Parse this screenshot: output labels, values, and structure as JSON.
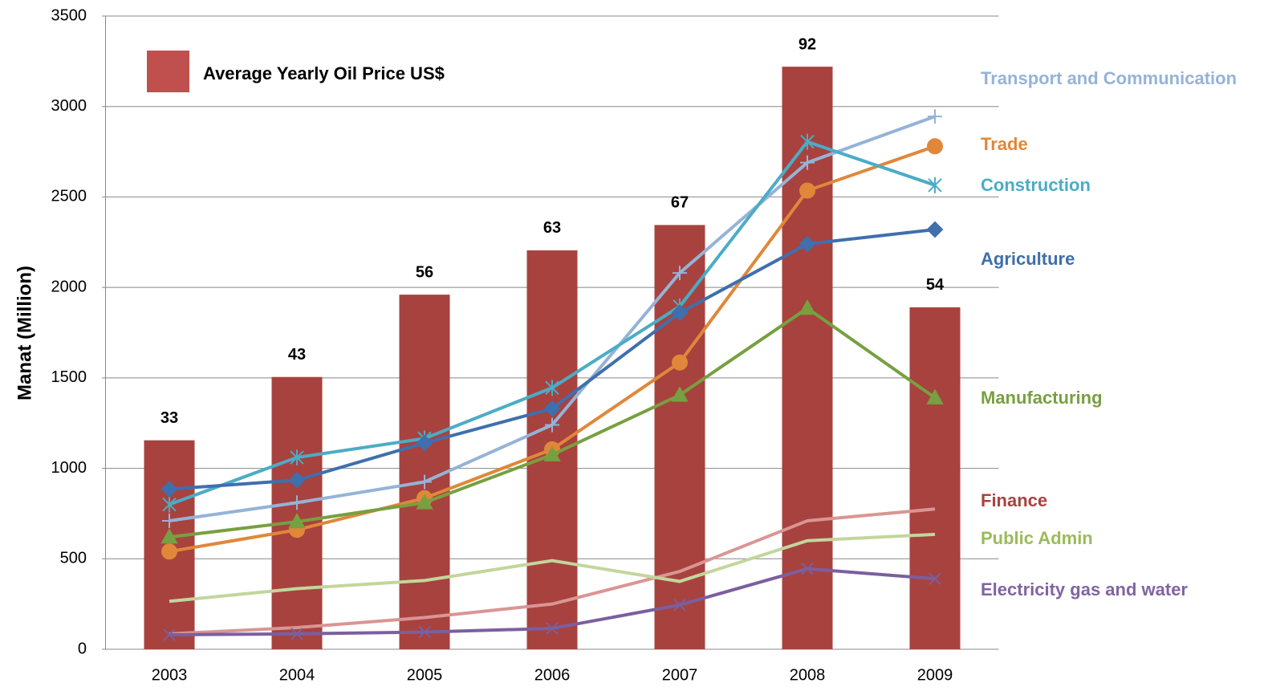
{
  "chart_data": {
    "type": "bar_line",
    "y_label": "Manat (Million)",
    "categories": [
      "2003",
      "2004",
      "2005",
      "2006",
      "2007",
      "2008",
      "2009"
    ],
    "ylim": [
      0,
      3500
    ],
    "yticks": [
      0,
      500,
      1000,
      1500,
      2000,
      2500,
      3000,
      3500
    ],
    "y2lim": [
      0,
      100
    ],
    "grid": true,
    "series": [
      {
        "name": "Average Yearly Oil Price US$",
        "type": "bar",
        "axis": "y2",
        "color": "#a8423f",
        "legend_color": "#c0504d",
        "values": [
          33,
          43,
          56,
          63,
          67,
          92,
          54
        ]
      },
      {
        "name": "Transport and Communication",
        "type": "line",
        "color": "#95b3d7",
        "marker": "plus",
        "values": [
          710,
          810,
          925,
          1240,
          2080,
          2690,
          2945
        ]
      },
      {
        "name": "Trade",
        "type": "line",
        "color": "#e0873a",
        "marker": "circle",
        "values": [
          540,
          660,
          835,
          1105,
          1585,
          2535,
          2780
        ]
      },
      {
        "name": "Construction",
        "type": "line",
        "color": "#4bacc6",
        "marker": "asterisk",
        "values": [
          800,
          1060,
          1165,
          1445,
          1895,
          2805,
          2565
        ]
      },
      {
        "name": "Agriculture",
        "type": "line",
        "color": "#3f6fad",
        "marker": "diamond",
        "values": [
          885,
          935,
          1140,
          1330,
          1860,
          2240,
          2320
        ]
      },
      {
        "name": "Manufacturing",
        "type": "line",
        "color": "#77a040",
        "marker": "triangle",
        "values": [
          620,
          705,
          810,
          1075,
          1405,
          1885,
          1390
        ]
      },
      {
        "name": "Finance",
        "type": "line",
        "color": "#d99594",
        "label_color": "#a8423f",
        "marker": "none",
        "values": [
          85,
          120,
          175,
          250,
          430,
          710,
          775
        ]
      },
      {
        "name": "Public Admin",
        "type": "line",
        "color": "#c3d69b",
        "label_color": "#9bbb59",
        "marker": "none",
        "values": [
          265,
          335,
          380,
          490,
          375,
          600,
          635
        ]
      },
      {
        "name": "Electricity gas and water",
        "type": "line",
        "color": "#7b5f9e",
        "label_color": "#8064a2",
        "marker": "x",
        "values": [
          80,
          85,
          95,
          115,
          245,
          445,
          390
        ]
      }
    ]
  }
}
